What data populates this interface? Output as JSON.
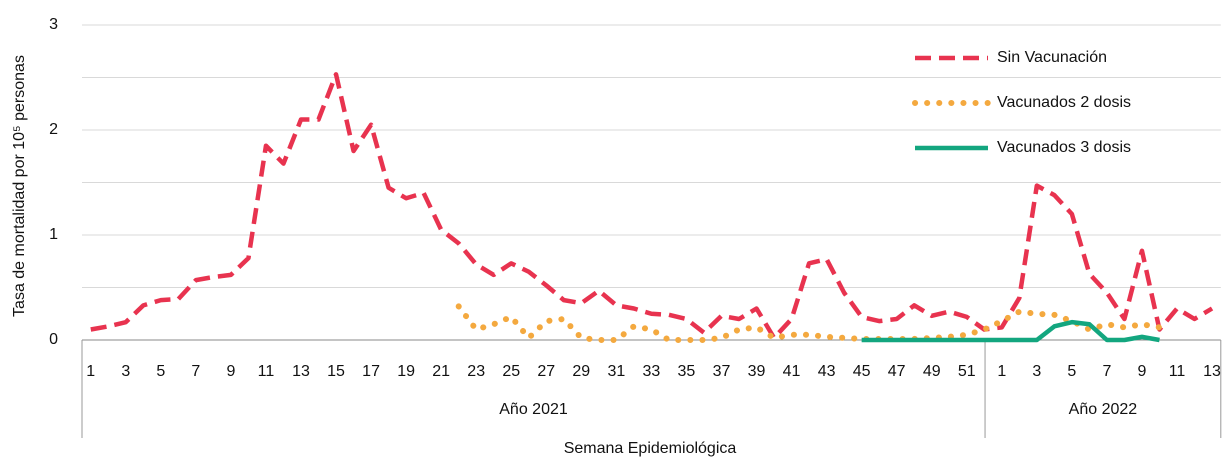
{
  "chart_data": {
    "type": "line",
    "y_label": "Tasa de mortalidad por 10⁵ personas",
    "x_label": "Semana Epidemiológica",
    "categories": [
      "1",
      null,
      "3",
      null,
      "5",
      null,
      "7",
      null,
      "9",
      null,
      "11",
      null,
      "13",
      null,
      "15",
      null,
      "17",
      null,
      "19",
      null,
      "21",
      null,
      "23",
      null,
      "25",
      null,
      "27",
      null,
      "29",
      null,
      "31",
      null,
      "33",
      null,
      "35",
      null,
      "37",
      null,
      "39",
      null,
      "41",
      null,
      "43",
      null,
      "45",
      null,
      "47",
      null,
      "49",
      null,
      "51",
      null,
      "1",
      null,
      "3",
      null,
      "5",
      null,
      "7",
      null,
      "9",
      null,
      "11",
      null,
      "13"
    ],
    "groups": [
      {
        "name": "Año 2021"
      },
      {
        "name": "Año 2022"
      }
    ],
    "ylim": [
      0,
      3
    ],
    "yticks": [
      0,
      1,
      2,
      3
    ],
    "minor_grid": [
      0.5,
      1.5,
      2.5
    ],
    "grid": true,
    "legend": "upper right",
    "series": [
      {
        "name": "Sin Vacunación",
        "color": "#e8334f",
        "style": "dashed",
        "values": [
          0.1,
          0.13,
          0.17,
          0.33,
          0.38,
          0.39,
          0.57,
          0.6,
          0.62,
          0.78,
          1.85,
          1.68,
          2.1,
          2.1,
          2.53,
          1.8,
          2.05,
          1.45,
          1.35,
          1.4,
          1.05,
          0.92,
          0.72,
          0.62,
          0.73,
          0.65,
          0.52,
          0.38,
          0.35,
          0.47,
          0.33,
          0.3,
          0.25,
          0.24,
          0.2,
          0.07,
          0.23,
          0.2,
          0.3,
          0.02,
          0.2,
          0.73,
          0.77,
          0.45,
          0.22,
          0.18,
          0.2,
          0.33,
          0.23,
          0.27,
          0.22,
          0.1,
          0.12,
          0.4,
          1.47,
          1.38,
          1.2,
          0.63,
          0.45,
          0.2,
          0.85,
          0.1,
          0.3,
          0.2,
          0.3
        ]
      },
      {
        "name": "Vacunados 2 dosis",
        "color": "#f4a93f",
        "style": "dotted",
        "values": [
          null,
          null,
          null,
          null,
          null,
          null,
          null,
          null,
          null,
          null,
          null,
          null,
          null,
          null,
          null,
          null,
          null,
          null,
          null,
          null,
          null,
          0.32,
          0.1,
          0.15,
          0.22,
          0.02,
          0.18,
          0.2,
          0.02,
          0.0,
          0.0,
          0.13,
          0.1,
          0.0,
          0.0,
          0.0,
          0.02,
          0.1,
          0.12,
          0.02,
          0.05,
          0.05,
          0.03,
          0.02,
          0.01,
          0.01,
          0.01,
          0.01,
          0.02,
          0.03,
          0.05,
          0.1,
          0.18,
          0.27,
          0.25,
          0.24,
          0.18,
          0.1,
          0.15,
          0.12,
          0.15,
          0.12,
          null,
          null,
          null
        ]
      },
      {
        "name": "Vacunados 3 dosis",
        "color": "#13a67f",
        "style": "solid",
        "values": [
          null,
          null,
          null,
          null,
          null,
          null,
          null,
          null,
          null,
          null,
          null,
          null,
          null,
          null,
          null,
          null,
          null,
          null,
          null,
          null,
          null,
          null,
          null,
          null,
          null,
          null,
          null,
          null,
          null,
          null,
          null,
          null,
          null,
          null,
          null,
          null,
          null,
          null,
          null,
          null,
          null,
          null,
          null,
          null,
          0,
          0,
          0,
          0,
          0,
          0,
          0,
          0,
          0,
          0,
          0,
          0.13,
          0.17,
          0.15,
          0,
          0,
          0.03,
          0,
          null,
          null,
          null
        ]
      }
    ]
  }
}
